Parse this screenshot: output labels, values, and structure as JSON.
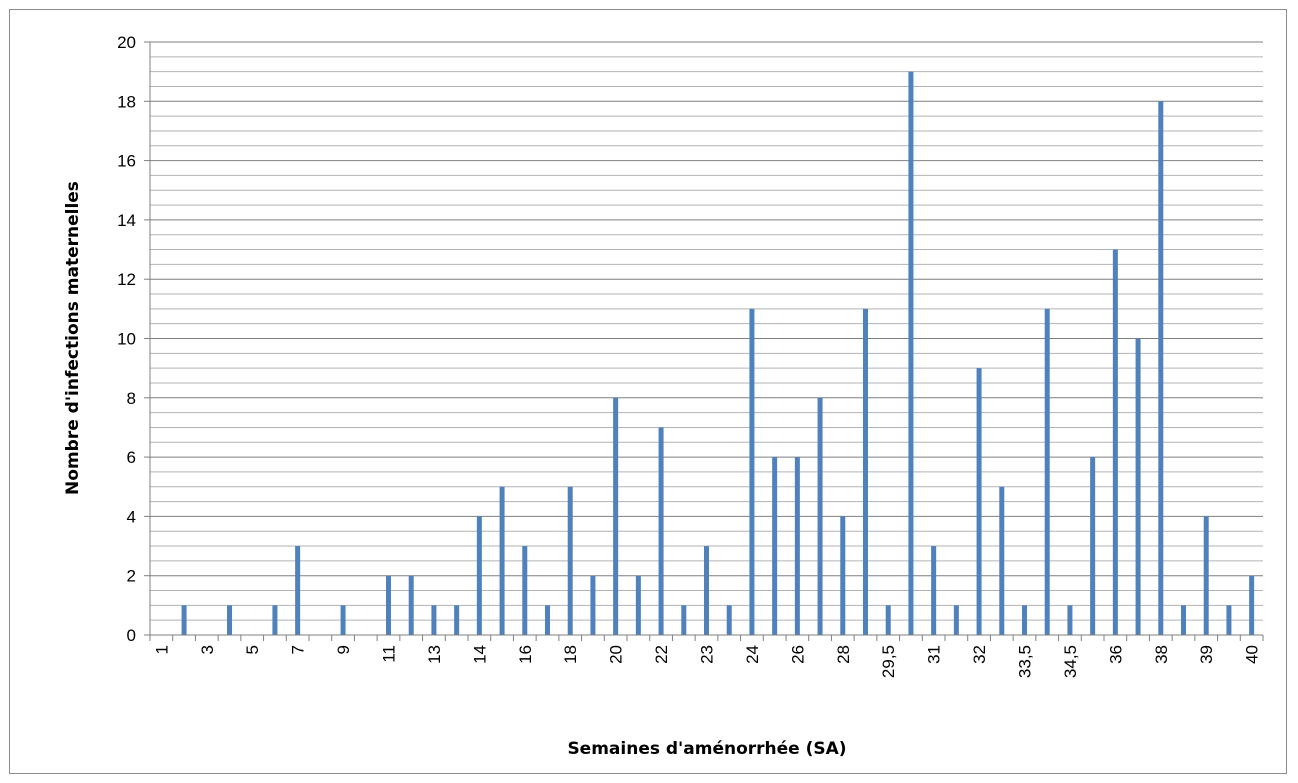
{
  "chart_data": {
    "type": "bar",
    "xlabel": "Semaines d'aménorrhée (SA)",
    "ylabel": "Nombre d'infections maternelles",
    "ylim": [
      0,
      20
    ],
    "y_major_step": 2,
    "y_minor_step": 0.5,
    "grid": true,
    "legend": "none",
    "bar_color": "#4f81bd",
    "categories": [
      "1",
      "2",
      "3",
      "4",
      "5",
      "6",
      "7",
      "8",
      "9",
      "10",
      "11",
      "12",
      "13",
      "13,5",
      "14",
      "15",
      "16",
      "17",
      "18",
      "19",
      "20",
      "21",
      "22",
      "22,5",
      "23",
      "23,5",
      "24",
      "25",
      "26",
      "27",
      "28",
      "29",
      "29,5",
      "30",
      "31",
      "31,5",
      "32",
      "33",
      "33,5",
      "34",
      "34,5",
      "35",
      "36",
      "37",
      "38",
      "38,5",
      "39",
      "39,5",
      "40"
    ],
    "tick_labels_shown": [
      "1",
      "3",
      "5",
      "7",
      "9",
      "11",
      "13",
      "14",
      "16",
      "18",
      "20",
      "22",
      "23",
      "24",
      "26",
      "28",
      "29,5",
      "31",
      "32",
      "33,5",
      "34,5",
      "36",
      "38",
      "39",
      "40"
    ],
    "values": [
      0,
      1,
      0,
      1,
      0,
      1,
      3,
      0,
      1,
      0,
      2,
      2,
      1,
      1,
      4,
      5,
      3,
      1,
      5,
      2,
      8,
      2,
      7,
      1,
      3,
      1,
      11,
      6,
      6,
      8,
      4,
      11,
      1,
      19,
      3,
      1,
      9,
      5,
      1,
      11,
      1,
      6,
      13,
      10,
      18,
      1,
      4,
      1,
      2
    ]
  }
}
